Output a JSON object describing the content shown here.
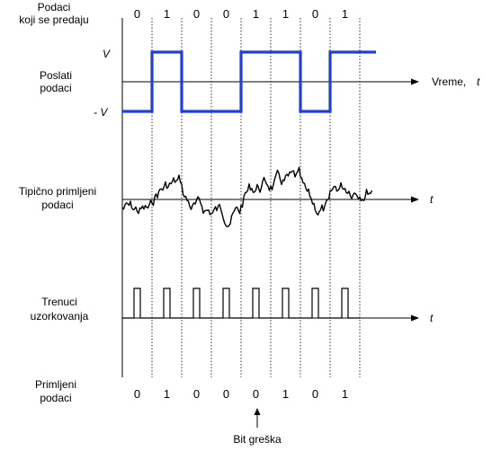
{
  "rows": {
    "data_sent_label": [
      "Podaci",
      "koji se predaju"
    ],
    "sent_signal_label": [
      "Poslati",
      "podaci"
    ],
    "received_signal_label": [
      "Tipično primljeni",
      "podaci"
    ],
    "sampling_label": [
      "Trenuci",
      "uzorkovanja"
    ],
    "received_bits_label": [
      "Primljeni",
      "podaci"
    ]
  },
  "axes": {
    "time_label": "Vreme,",
    "time_var": "t",
    "t_label": "t",
    "level_high": "V",
    "level_low": "- V"
  },
  "transmitted_bits": [
    "0",
    "1",
    "0",
    "0",
    "1",
    "1",
    "0",
    "1"
  ],
  "received_bits": [
    "0",
    "1",
    "0",
    "0",
    "0",
    "1",
    "0",
    "1"
  ],
  "error_annotation": "Bit greška",
  "colors": {
    "signal": "#1f3fd6",
    "ink": "#000000"
  }
}
